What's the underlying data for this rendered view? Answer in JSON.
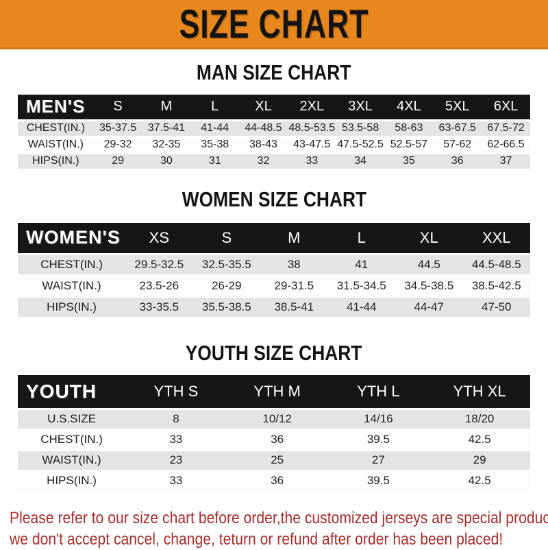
{
  "page": {
    "title": "SIZE CHART",
    "footer_line1": "Please refer to our size chart before order,the customized jerseys are special products,",
    "footer_line2": "we don't accept cancel, change, teturn or refund after order has been placed!"
  },
  "colors": {
    "banner_orange": "#E8871E",
    "table_header_black": "#161616",
    "row_gray": "#E4E4E4",
    "row_white": "#FDFDFD",
    "footer_red": "#A42E2C"
  },
  "charts": [
    {
      "id": "men",
      "heading": "MAN SIZE CHART",
      "label": "MEN'S",
      "columns": [
        "S",
        "M",
        "L",
        "XL",
        "2XL",
        "3XL",
        "4XL",
        "5XL",
        "6XL"
      ],
      "rows": [
        {
          "label": "CHEST(IN.)",
          "values": [
            "35-37.5",
            "37.5-41",
            "41-44",
            "44-48.5",
            "48.5-53.5",
            "53.5-58",
            "58-63",
            "63-67.5",
            "67.5-72"
          ]
        },
        {
          "label": "WAIST(IN.)",
          "values": [
            "29-32",
            "32-35",
            "35-38",
            "38-43",
            "43-47.5",
            "47.5-52.5",
            "52.5-57",
            "57-62",
            "62-66.5"
          ]
        },
        {
          "label": "HIPS(IN.)",
          "values": [
            "29",
            "30",
            "31",
            "32",
            "33",
            "34",
            "35",
            "36",
            "37"
          ]
        }
      ]
    },
    {
      "id": "women",
      "heading": "WOMEN SIZE CHART",
      "label": "WOMEN'S",
      "columns": [
        "XS",
        "S",
        "M",
        "L",
        "XL",
        "XXL"
      ],
      "rows": [
        {
          "label": "CHEST(IN.)",
          "values": [
            "29.5-32.5",
            "32.5-35.5",
            "38",
            "41",
            "44.5",
            "44.5-48.5"
          ]
        },
        {
          "label": "WAIST(IN.)",
          "values": [
            "23.5-26",
            "26-29",
            "29-31.5",
            "31.5-34.5",
            "34.5-38.5",
            "38.5-42.5"
          ]
        },
        {
          "label": "HIPS(IN.)",
          "values": [
            "33-35.5",
            "35.5-38.5",
            "38.5-41",
            "41-44",
            "44-47",
            "47-50"
          ]
        }
      ]
    },
    {
      "id": "youth",
      "heading": "YOUTH SIZE CHART",
      "label": "YOUTH",
      "columns": [
        "YTH S",
        "YTH M",
        "YTH L",
        "YTH XL"
      ],
      "rows": [
        {
          "label": "U.S.SIZE",
          "values": [
            "8",
            "10/12",
            "14/16",
            "18/20"
          ]
        },
        {
          "label": "CHEST(IN.)",
          "values": [
            "33",
            "36",
            "39.5",
            "42.5"
          ]
        },
        {
          "label": "WAIST(IN.)",
          "values": [
            "23",
            "25",
            "27",
            "29"
          ]
        },
        {
          "label": "HIPS(IN.)",
          "values": [
            "33",
            "36",
            "39.5",
            "42.5"
          ]
        }
      ]
    }
  ]
}
